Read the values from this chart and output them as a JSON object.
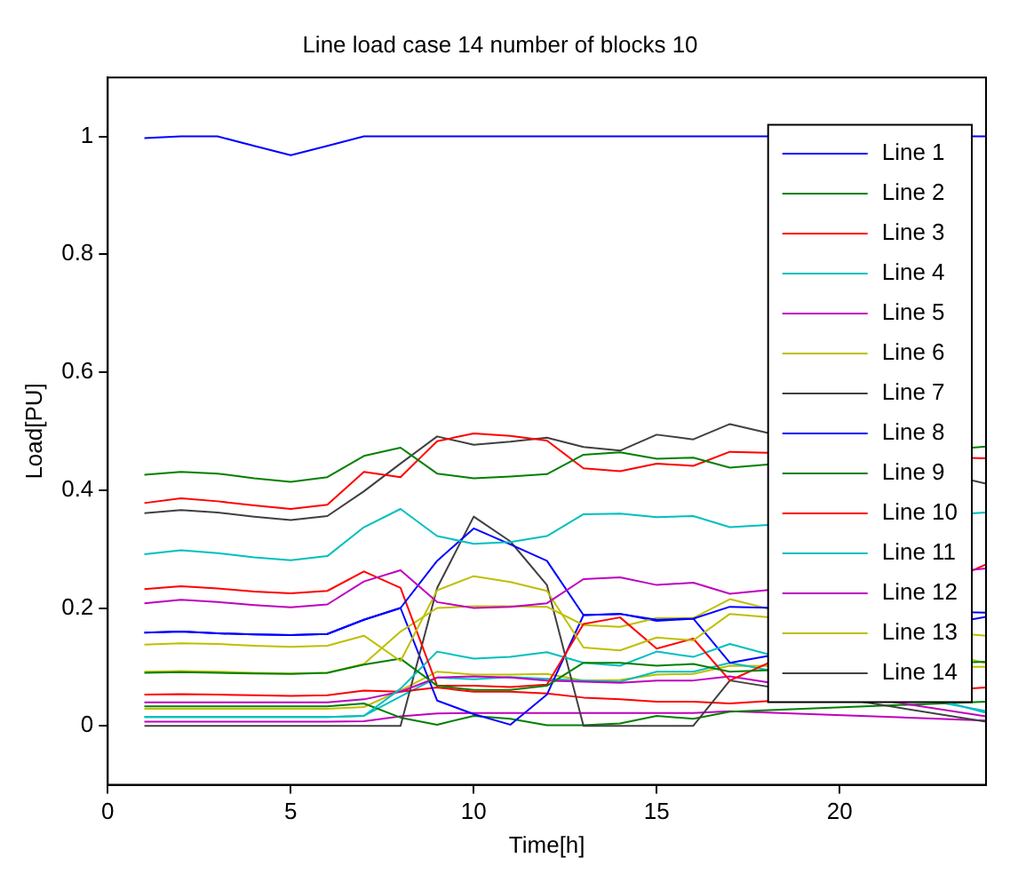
{
  "chart_data": {
    "type": "line",
    "title": "Line load case 14 number of blocks 10",
    "xlabel": "Time[h]",
    "ylabel": "Load[PU]",
    "x": [
      1,
      2,
      3,
      4,
      5,
      6,
      7,
      8,
      9,
      10,
      11,
      12,
      13,
      14,
      15,
      16,
      17,
      18,
      19,
      20,
      21,
      22,
      23,
      24
    ],
    "xlim": [
      0,
      24
    ],
    "xticks": [
      0,
      5,
      10,
      15,
      20
    ],
    "ylim": [
      -0.1,
      1.1
    ],
    "yticks": [
      0,
      0.2,
      0.4,
      0.6,
      0.8,
      1
    ],
    "grid": false,
    "legend": "right",
    "marker": "none",
    "line_style": "solid",
    "series": [
      {
        "name": "Line 1",
        "color": "#0000ff",
        "values": [
          0.997,
          1,
          1,
          0.984,
          0.968,
          0.984,
          1,
          1,
          1,
          1,
          1,
          1,
          1,
          1,
          1,
          1,
          1,
          null,
          null,
          null,
          null,
          null,
          null,
          1
        ]
      },
      {
        "name": "Line 2",
        "color": "#008000",
        "values": [
          0.426,
          0.431,
          0.428,
          0.42,
          0.414,
          0.422,
          0.458,
          0.472,
          0.428,
          0.42,
          0.423,
          0.427,
          0.46,
          0.464,
          0.453,
          0.455,
          0.438,
          null,
          null,
          null,
          null,
          null,
          null,
          0.474
        ]
      },
      {
        "name": "Line 3",
        "color": "#ff0000",
        "values": [
          0.378,
          0.386,
          0.381,
          0.374,
          0.368,
          0.375,
          0.431,
          0.422,
          0.483,
          0.496,
          0.492,
          0.484,
          0.437,
          0.432,
          0.445,
          0.441,
          0.465,
          null,
          null,
          null,
          null,
          null,
          null,
          0.454
        ]
      },
      {
        "name": "Line 4",
        "color": "#00bfbf",
        "values": [
          0.291,
          0.298,
          0.293,
          0.286,
          0.281,
          0.288,
          0.337,
          0.368,
          0.322,
          0.309,
          0.312,
          0.322,
          0.359,
          0.36,
          0.354,
          0.356,
          0.337,
          null,
          null,
          null,
          null,
          null,
          null,
          0.362
        ]
      },
      {
        "name": "Line 5",
        "color": "#bf00bf",
        "values": [
          0.208,
          0.214,
          0.21,
          0.205,
          0.201,
          0.206,
          0.245,
          0.264,
          0.21,
          0.2,
          0.202,
          0.208,
          0.249,
          0.252,
          0.239,
          0.243,
          0.224,
          null,
          null,
          null,
          null,
          null,
          null,
          0.267
        ]
      },
      {
        "name": "Line 6",
        "color": "#bfbf00",
        "values": [
          0.138,
          0.14,
          0.139,
          0.136,
          0.134,
          0.136,
          0.153,
          0.11,
          0.23,
          0.254,
          0.244,
          0.229,
          0.133,
          0.128,
          0.15,
          0.145,
          0.19,
          null,
          null,
          null,
          null,
          null,
          null,
          0.153
        ]
      },
      {
        "name": "Line 7",
        "color": "#404040",
        "values": [
          0.361,
          0.366,
          0.362,
          0.355,
          0.349,
          0.356,
          0.398,
          0.445,
          0.491,
          0.477,
          0.482,
          0.489,
          0.473,
          0.467,
          0.494,
          0.486,
          0.512,
          null,
          null,
          null,
          null,
          null,
          null,
          0.411
        ]
      },
      {
        "name": "Line 8",
        "color": "#0000ff",
        "values": [
          0.158,
          0.16,
          0.157,
          0.155,
          0.154,
          0.156,
          0.18,
          0.2,
          0.28,
          0.335,
          0.308,
          0.28,
          0.188,
          0.19,
          0.18,
          0.182,
          0.202,
          null,
          null,
          null,
          null,
          null,
          null,
          0.192
        ]
      },
      {
        "name": "Line 9",
        "color": "#008000",
        "values": [
          0.09,
          0.091,
          0.09,
          0.089,
          0.088,
          0.09,
          0.104,
          0.114,
          0.068,
          0.061,
          0.061,
          0.068,
          0.107,
          0.107,
          0.102,
          0.105,
          0.092,
          null,
          null,
          null,
          null,
          null,
          null,
          0.109
        ]
      },
      {
        "name": "Line 10",
        "color": "#ff0000",
        "values": [
          0.232,
          0.237,
          0.233,
          0.228,
          0.225,
          0.229,
          0.262,
          0.234,
          0.068,
          0.068,
          0.066,
          0.07,
          0.173,
          0.184,
          0.131,
          0.148,
          0.077,
          null,
          null,
          null,
          null,
          null,
          null,
          0.274
        ]
      },
      {
        "name": "Line 11",
        "color": "#00bfbf",
        "values": [
          0.015,
          0.015,
          0.015,
          0.015,
          0.015,
          0.015,
          0.017,
          0.063,
          0.126,
          0.114,
          0.117,
          0.125,
          0.107,
          0.102,
          0.126,
          0.117,
          0.139,
          null,
          null,
          null,
          null,
          null,
          null,
          0.022
        ]
      },
      {
        "name": "Line 12",
        "color": "#bf00bf",
        "values": [
          0.04,
          0.04,
          0.04,
          0.04,
          0.04,
          0.04,
          0.045,
          0.058,
          0.082,
          0.084,
          0.082,
          0.077,
          0.075,
          0.073,
          0.077,
          0.077,
          0.084,
          null,
          null,
          null,
          null,
          null,
          null,
          0.016
        ]
      },
      {
        "name": "Line 13",
        "color": "#bfbf00",
        "values": [
          0.092,
          0.093,
          0.092,
          0.09,
          0.089,
          0.09,
          0.105,
          0.16,
          0.2,
          0.203,
          0.203,
          0.202,
          0.171,
          0.168,
          0.183,
          0.183,
          0.215,
          null,
          null,
          null,
          null,
          null,
          null,
          0.106
        ]
      },
      {
        "name": "Line 14",
        "color": "#404040",
        "values": [
          0,
          0,
          0,
          0,
          0,
          0,
          0,
          0,
          0.234,
          0.355,
          0.313,
          0.239,
          0,
          0,
          0,
          0,
          0.077,
          null,
          null,
          null,
          null,
          null,
          null,
          0.007
        ]
      },
      {
        "color": "#0000ff",
        "values": [
          0.158,
          0.16,
          0.157,
          0.155,
          0.154,
          0.156,
          0.18,
          0.2,
          0.043,
          0.02,
          0.002,
          0.053,
          0.188,
          0.19,
          0.178,
          0.182,
          0.107,
          null,
          null,
          null,
          null,
          null,
          null,
          0.185
        ]
      },
      {
        "color": "#008000",
        "values": [
          0.033,
          0.033,
          0.033,
          0.033,
          0.033,
          0.033,
          0.038,
          0.014,
          0.002,
          0.017,
          0.012,
          0.001,
          0.001,
          0.004,
          0.017,
          0.012,
          0.024,
          null,
          null,
          null,
          null,
          null,
          null,
          0.041
        ]
      },
      {
        "color": "#ff0000",
        "values": [
          0.053,
          0.054,
          0.053,
          0.052,
          0.051,
          0.052,
          0.06,
          0.058,
          0.065,
          0.058,
          0.058,
          0.055,
          0.048,
          0.045,
          0.041,
          0.041,
          0.038,
          null,
          null,
          null,
          null,
          null,
          null,
          0.065
        ]
      },
      {
        "color": "#00bfbf",
        "values": [
          0.015,
          0.015,
          0.015,
          0.015,
          0.015,
          0.015,
          0.017,
          0.05,
          0.082,
          0.079,
          0.083,
          0.08,
          0.077,
          0.075,
          0.092,
          0.092,
          0.107,
          null,
          null,
          null,
          null,
          null,
          null,
          0.025
        ]
      },
      {
        "color": "#bf00bf",
        "values": [
          0.007,
          0.007,
          0.007,
          0.007,
          0.007,
          0.007,
          0.008,
          0.016,
          0.021,
          0.022,
          0.022,
          0.022,
          0.022,
          0.022,
          0.022,
          0.022,
          0.025,
          null,
          null,
          null,
          null,
          null,
          null,
          0.009
        ]
      },
      {
        "color": "#bfbf00",
        "values": [
          0.029,
          0.029,
          0.029,
          0.029,
          0.029,
          0.029,
          0.032,
          0.06,
          0.092,
          0.087,
          0.087,
          0.088,
          0.077,
          0.078,
          0.087,
          0.088,
          0.102,
          null,
          null,
          null,
          null,
          null,
          null,
          0.1
        ]
      }
    ]
  }
}
